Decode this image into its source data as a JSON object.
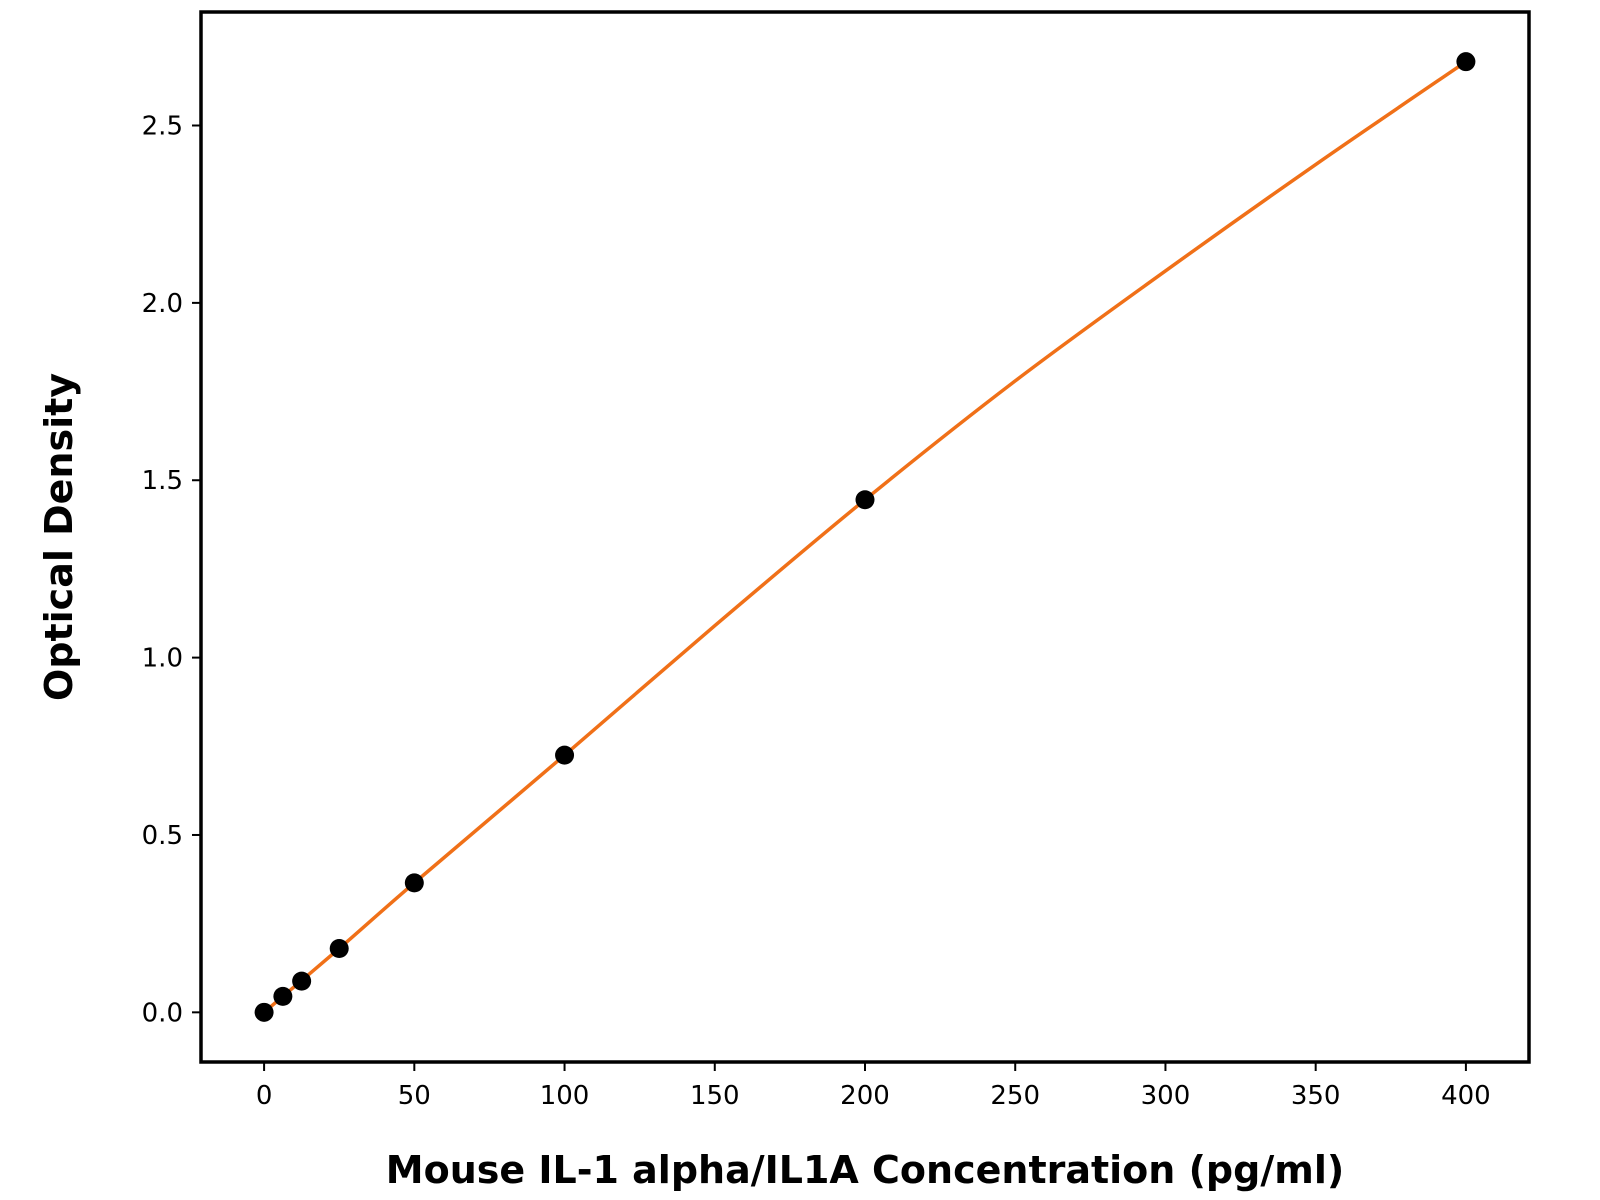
{
  "chart_data": {
    "type": "scatter",
    "title": "",
    "xlabel": "Mouse IL-1 alpha/IL1A Concentration (pg/ml)",
    "ylabel": "Optical Density",
    "xlim": [
      -21,
      421
    ],
    "ylim": [
      -0.14,
      2.82
    ],
    "x_ticks": [
      0,
      50,
      100,
      150,
      200,
      250,
      300,
      350,
      400
    ],
    "x_tick_labels": [
      "0",
      "50",
      "100",
      "150",
      "200",
      "250",
      "300",
      "350",
      "400"
    ],
    "y_ticks": [
      0.0,
      0.5,
      1.0,
      1.5,
      2.0,
      2.5
    ],
    "y_tick_labels": [
      "0.0",
      "0.5",
      "1.0",
      "1.5",
      "2.0",
      "2.5"
    ],
    "grid": false,
    "legend": "none",
    "series": [
      {
        "kind": "points",
        "color": "#000000",
        "x": [
          0,
          6.25,
          12.5,
          25,
          50,
          100,
          200,
          400
        ],
        "y": [
          0.0,
          0.045,
          0.088,
          0.18,
          0.365,
          0.725,
          1.445,
          2.68
        ]
      },
      {
        "kind": "fit-line",
        "color": "#f07018",
        "x": [
          0,
          25,
          50,
          100,
          150,
          200,
          250,
          300,
          350,
          400
        ],
        "y": [
          0.0,
          0.18,
          0.365,
          0.725,
          1.09,
          1.445,
          1.78,
          2.09,
          2.39,
          2.68
        ]
      }
    ]
  }
}
